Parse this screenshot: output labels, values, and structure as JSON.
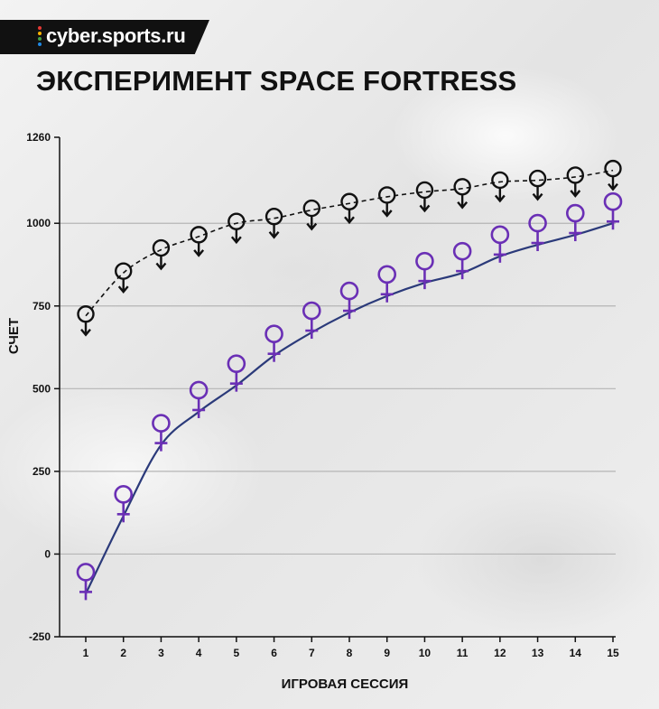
{
  "brand": {
    "name": "cyber.sports.ru",
    "dot_colors": [
      "#e53935",
      "#ffb300",
      "#43a047",
      "#1e88e5"
    ]
  },
  "title": "ЭКСПЕРИМЕНТ SPACE FORTRESS",
  "chart_data": {
    "type": "line",
    "title": "ЭКСПЕРИМЕНТ SPACE FORTRESS",
    "xlabel": "ИГРОВАЯ СЕССИЯ",
    "ylabel": "СЧЕТ",
    "x": [
      1,
      2,
      3,
      4,
      5,
      6,
      7,
      8,
      9,
      10,
      11,
      12,
      13,
      14,
      15
    ],
    "x_ticks": [
      "1",
      "2",
      "3",
      "4",
      "5",
      "6",
      "7",
      "8",
      "9",
      "10",
      "11",
      "12",
      "13",
      "14",
      "15"
    ],
    "y_ticks": [
      "1260",
      "1000",
      "750",
      "500",
      "250",
      "0",
      "-250"
    ],
    "ylim": [
      -250,
      1260
    ],
    "grid": true,
    "series": [
      {
        "marker": "male-symbol",
        "line_style": "dashed",
        "color": "#111111",
        "values": [
          720,
          850,
          920,
          960,
          1000,
          1015,
          1040,
          1060,
          1080,
          1095,
          1105,
          1125,
          1130,
          1140,
          1160
        ]
      },
      {
        "marker": "female-symbol",
        "line_style": "solid",
        "color": "#2b3a7a",
        "marker_color": "#6a2fb5",
        "values": [
          -120,
          115,
          330,
          430,
          510,
          600,
          670,
          730,
          780,
          820,
          850,
          900,
          935,
          965,
          1000
        ]
      }
    ]
  }
}
